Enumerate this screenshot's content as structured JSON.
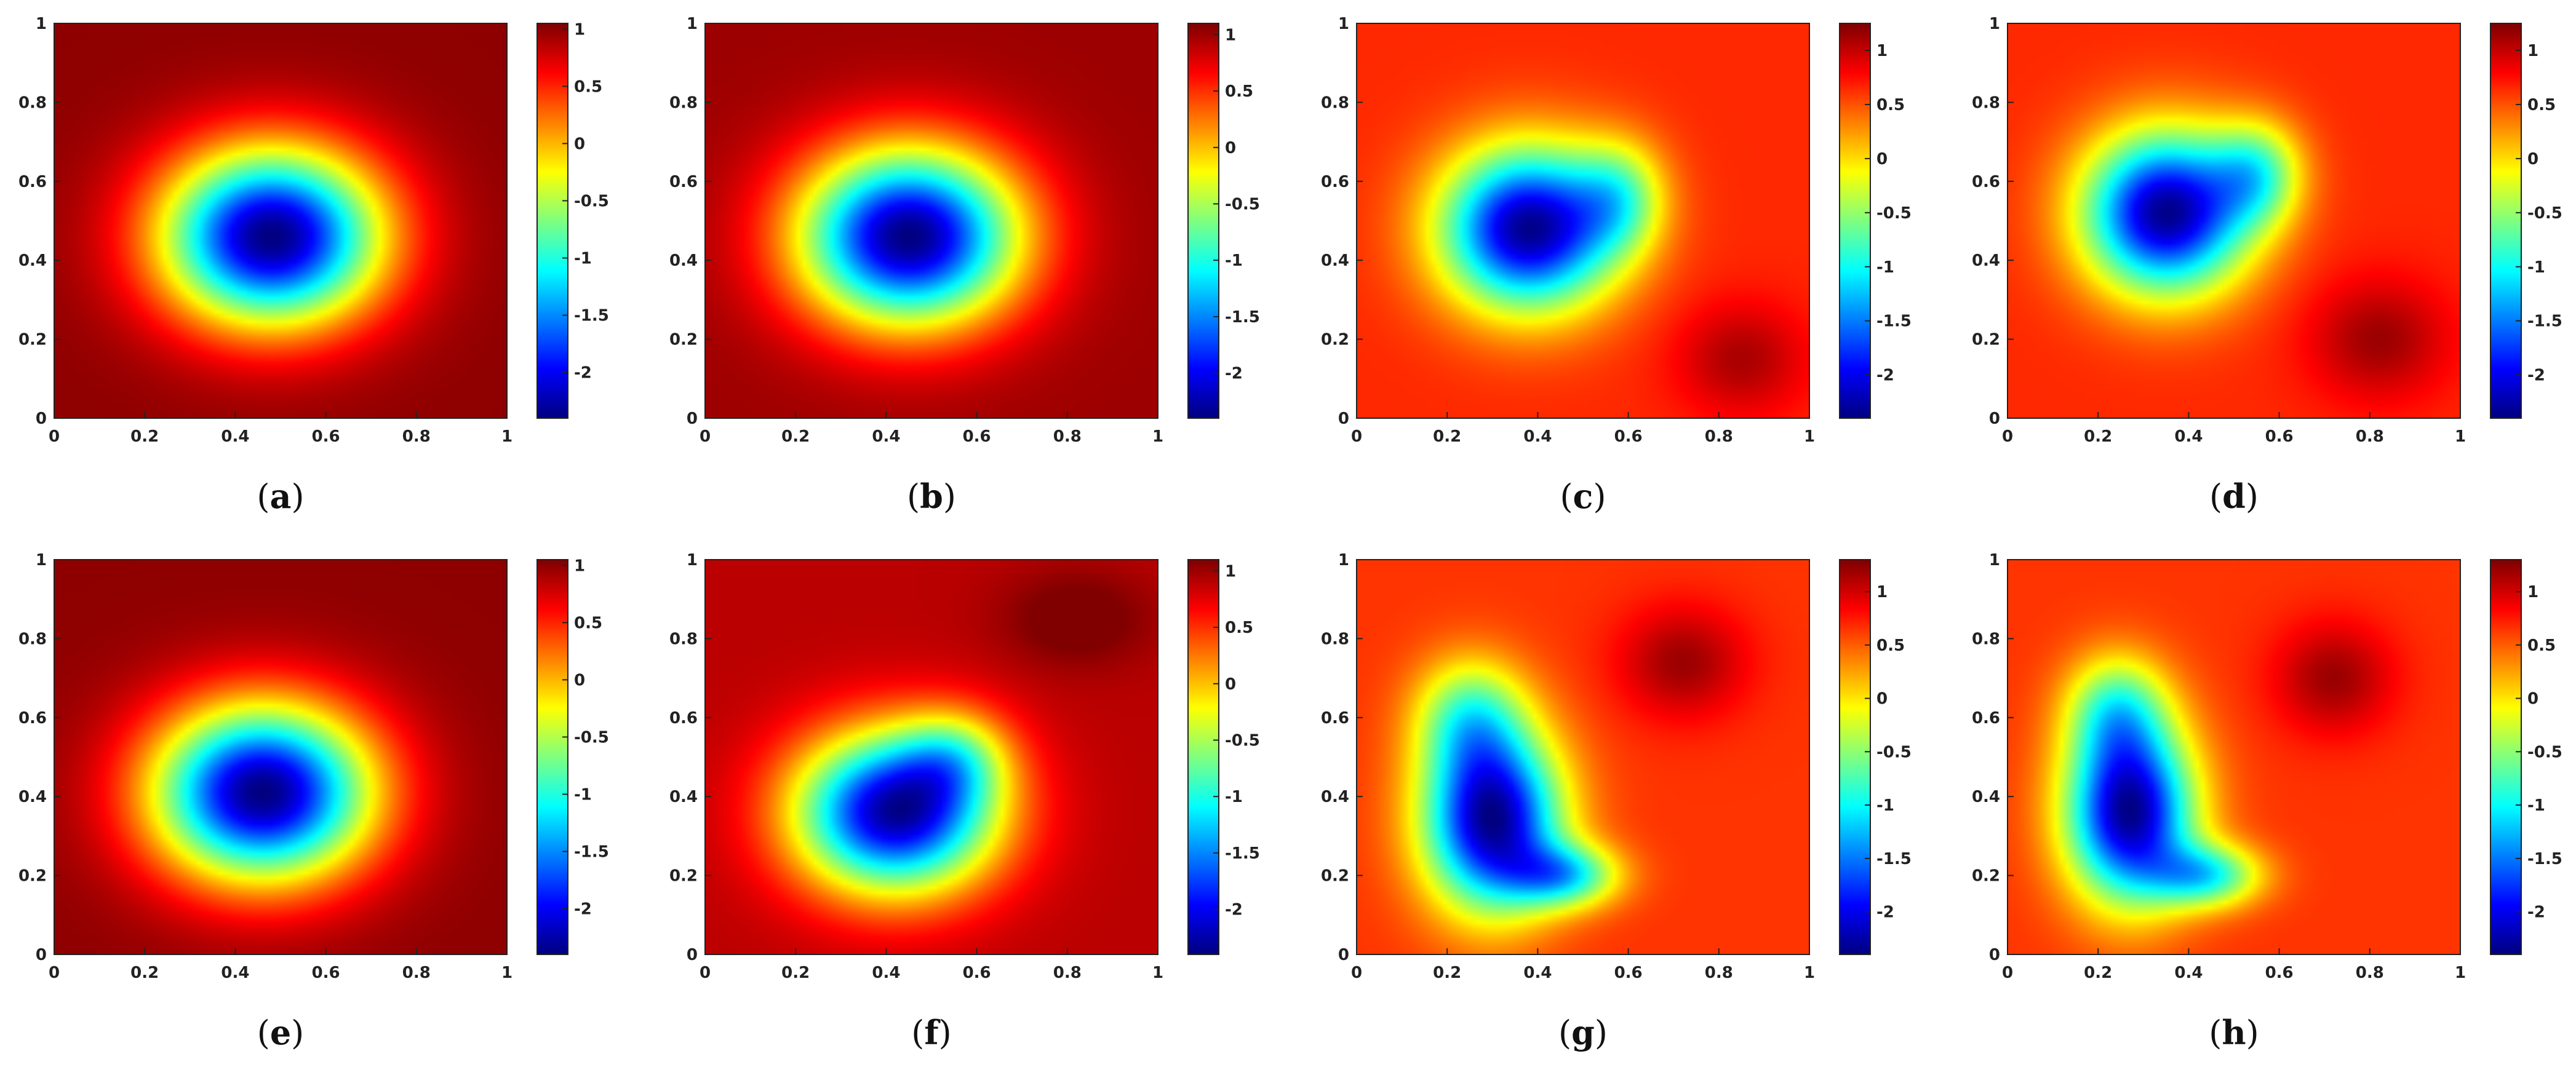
{
  "chart_data": [
    {
      "type": "heatmap",
      "panel": "a",
      "caption_label": "a",
      "x_ticks": [
        "0",
        "0.2",
        "0.4",
        "0.6",
        "0.8",
        "1"
      ],
      "y_ticks": [
        "0",
        "0.2",
        "0.4",
        "0.6",
        "0.8",
        "1"
      ],
      "xlim": [
        0,
        1
      ],
      "ylim": [
        0,
        1
      ],
      "colorbar": {
        "min": -2.4,
        "max": 1.05,
        "ticks": [
          "1",
          "0.5",
          "0",
          "-0.5",
          "-1",
          "-1.5",
          "-2"
        ],
        "tick_values": [
          1,
          0.5,
          0,
          -0.5,
          -1,
          -1.5,
          -2
        ]
      },
      "colormap": "jet",
      "field": {
        "background": 1.0,
        "blobs": [
          {
            "cx": 0.48,
            "cy": 0.46,
            "sx": 0.24,
            "sy": 0.22,
            "amp": -3.4
          }
        ]
      }
    },
    {
      "type": "heatmap",
      "panel": "b",
      "caption_label": "b",
      "x_ticks": [
        "0",
        "0.2",
        "0.4",
        "0.6",
        "0.8",
        "1"
      ],
      "y_ticks": [
        "0",
        "0.2",
        "0.4",
        "0.6",
        "0.8",
        "1"
      ],
      "xlim": [
        0,
        1
      ],
      "ylim": [
        0,
        1
      ],
      "colorbar": {
        "min": -2.4,
        "max": 1.1,
        "ticks": [
          "1",
          "0.5",
          "0",
          "-0.5",
          "-1",
          "-1.5",
          "-2"
        ],
        "tick_values": [
          1,
          0.5,
          0,
          -0.5,
          -1,
          -1.5,
          -2
        ]
      },
      "colormap": "jet",
      "field": {
        "background": 1.0,
        "blobs": [
          {
            "cx": 0.45,
            "cy": 0.46,
            "sx": 0.24,
            "sy": 0.22,
            "amp": -3.4
          }
        ]
      }
    },
    {
      "type": "heatmap",
      "panel": "c",
      "caption_label": "c",
      "x_ticks": [
        "0",
        "0.2",
        "0.4",
        "0.6",
        "0.8",
        "1"
      ],
      "y_ticks": [
        "0",
        "0.2",
        "0.4",
        "0.6",
        "0.8",
        "1"
      ],
      "xlim": [
        0,
        1
      ],
      "ylim": [
        0,
        1
      ],
      "colorbar": {
        "min": -2.4,
        "max": 1.25,
        "ticks": [
          "1",
          "0.5",
          "0",
          "-0.5",
          "-1",
          "-1.5",
          "-2"
        ],
        "tick_values": [
          1,
          0.5,
          0,
          -0.5,
          -1,
          -1.5,
          -2
        ]
      },
      "colormap": "jet",
      "field": {
        "background": 0.65,
        "blobs": [
          {
            "cx": 0.38,
            "cy": 0.48,
            "sx": 0.19,
            "sy": 0.2,
            "amp": -3.0
          },
          {
            "cx": 0.58,
            "cy": 0.56,
            "sx": 0.1,
            "sy": 0.14,
            "amp": -1.0
          },
          {
            "cx": 0.85,
            "cy": 0.15,
            "sx": 0.14,
            "sy": 0.14,
            "amp": 0.45
          }
        ]
      }
    },
    {
      "type": "heatmap",
      "panel": "d",
      "caption_label": "d",
      "x_ticks": [
        "0",
        "0.2",
        "0.4",
        "0.6",
        "0.8",
        "1"
      ],
      "y_ticks": [
        "0",
        "0.2",
        "0.4",
        "0.6",
        "0.8",
        "1"
      ],
      "xlim": [
        0,
        1
      ],
      "ylim": [
        0,
        1
      ],
      "colorbar": {
        "min": -2.4,
        "max": 1.25,
        "ticks": [
          "1",
          "0.5",
          "0",
          "-0.5",
          "-1",
          "-1.5",
          "-2"
        ],
        "tick_values": [
          1,
          0.5,
          0,
          -0.5,
          -1,
          -1.5,
          -2
        ]
      },
      "colormap": "jet",
      "field": {
        "background": 0.65,
        "blobs": [
          {
            "cx": 0.35,
            "cy": 0.52,
            "sx": 0.18,
            "sy": 0.2,
            "amp": -3.0
          },
          {
            "cx": 0.55,
            "cy": 0.62,
            "sx": 0.1,
            "sy": 0.13,
            "amp": -1.2
          },
          {
            "cx": 0.82,
            "cy": 0.2,
            "sx": 0.15,
            "sy": 0.15,
            "amp": 0.5
          }
        ]
      }
    },
    {
      "type": "heatmap",
      "panel": "e",
      "caption_label": "e",
      "x_ticks": [
        "0",
        "0.2",
        "0.4",
        "0.6",
        "0.8",
        "1"
      ],
      "y_ticks": [
        "0",
        "0.2",
        "0.4",
        "0.6",
        "0.8",
        "1"
      ],
      "xlim": [
        0,
        1
      ],
      "ylim": [
        0,
        1
      ],
      "colorbar": {
        "min": -2.4,
        "max": 1.05,
        "ticks": [
          "1",
          "0.5",
          "0",
          "-0.5",
          "-1",
          "-1.5",
          "-2"
        ],
        "tick_values": [
          1,
          0.5,
          0,
          -0.5,
          -1,
          -1.5,
          -2
        ]
      },
      "colormap": "jet",
      "field": {
        "background": 1.0,
        "blobs": [
          {
            "cx": 0.46,
            "cy": 0.41,
            "sx": 0.24,
            "sy": 0.22,
            "amp": -3.4
          }
        ]
      }
    },
    {
      "type": "heatmap",
      "panel": "f",
      "caption_label": "f",
      "x_ticks": [
        "0",
        "0.2",
        "0.4",
        "0.6",
        "0.8",
        "1"
      ],
      "y_ticks": [
        "0",
        "0.2",
        "0.4",
        "0.6",
        "0.8",
        "1"
      ],
      "xlim": [
        0,
        1
      ],
      "ylim": [
        0,
        1
      ],
      "colorbar": {
        "min": -2.4,
        "max": 1.1,
        "ticks": [
          "1",
          "0.5",
          "0",
          "-0.5",
          "-1",
          "-1.5",
          "-2"
        ],
        "tick_values": [
          1,
          0.5,
          0,
          -0.5,
          -1,
          -1.5,
          -2
        ]
      },
      "colormap": "jet",
      "field": {
        "background": 0.9,
        "blobs": [
          {
            "cx": 0.42,
            "cy": 0.36,
            "sx": 0.22,
            "sy": 0.2,
            "amp": -3.2
          },
          {
            "cx": 0.55,
            "cy": 0.5,
            "sx": 0.12,
            "sy": 0.12,
            "amp": -0.9
          },
          {
            "cx": 0.82,
            "cy": 0.85,
            "sx": 0.16,
            "sy": 0.12,
            "amp": 0.3
          }
        ]
      }
    },
    {
      "type": "heatmap",
      "panel": "g",
      "caption_label": "g",
      "x_ticks": [
        "0",
        "0.2",
        "0.4",
        "0.6",
        "0.8",
        "1"
      ],
      "y_ticks": [
        "0",
        "0.2",
        "0.4",
        "0.6",
        "0.8",
        "1"
      ],
      "xlim": [
        0,
        1
      ],
      "ylim": [
        0,
        1
      ],
      "colorbar": {
        "min": -2.4,
        "max": 1.3,
        "ticks": [
          "1",
          "0.5",
          "0",
          "-0.5",
          "-1",
          "-1.5",
          "-2"
        ],
        "tick_values": [
          1,
          0.5,
          0,
          -0.5,
          -1,
          -1.5,
          -2
        ]
      },
      "colormap": "jet",
      "field": {
        "background": 0.65,
        "blobs": [
          {
            "cx": 0.3,
            "cy": 0.34,
            "sx": 0.15,
            "sy": 0.22,
            "amp": -3.0
          },
          {
            "cx": 0.46,
            "cy": 0.2,
            "sx": 0.12,
            "sy": 0.08,
            "amp": -1.5
          },
          {
            "cx": 0.25,
            "cy": 0.6,
            "sx": 0.12,
            "sy": 0.15,
            "amp": -1.2
          },
          {
            "cx": 0.72,
            "cy": 0.74,
            "sx": 0.14,
            "sy": 0.14,
            "amp": 0.55
          }
        ]
      }
    },
    {
      "type": "heatmap",
      "panel": "h",
      "caption_label": "h",
      "x_ticks": [
        "0",
        "0.2",
        "0.4",
        "0.6",
        "0.8",
        "1"
      ],
      "y_ticks": [
        "0",
        "0.2",
        "0.4",
        "0.6",
        "0.8",
        "1"
      ],
      "xlim": [
        0,
        1
      ],
      "ylim": [
        0,
        1
      ],
      "colorbar": {
        "min": -2.4,
        "max": 1.3,
        "ticks": [
          "1",
          "0.5",
          "0",
          "-0.5",
          "-1",
          "-1.5",
          "-2"
        ],
        "tick_values": [
          1,
          0.5,
          0,
          -0.5,
          -1,
          -1.5,
          -2
        ]
      },
      "colormap": "jet",
      "field": {
        "background": 0.65,
        "blobs": [
          {
            "cx": 0.27,
            "cy": 0.36,
            "sx": 0.14,
            "sy": 0.22,
            "amp": -3.0
          },
          {
            "cx": 0.44,
            "cy": 0.2,
            "sx": 0.12,
            "sy": 0.08,
            "amp": -1.5
          },
          {
            "cx": 0.24,
            "cy": 0.62,
            "sx": 0.11,
            "sy": 0.14,
            "amp": -1.2
          },
          {
            "cx": 0.72,
            "cy": 0.7,
            "sx": 0.13,
            "sy": 0.14,
            "amp": 0.55
          }
        ]
      }
    }
  ]
}
